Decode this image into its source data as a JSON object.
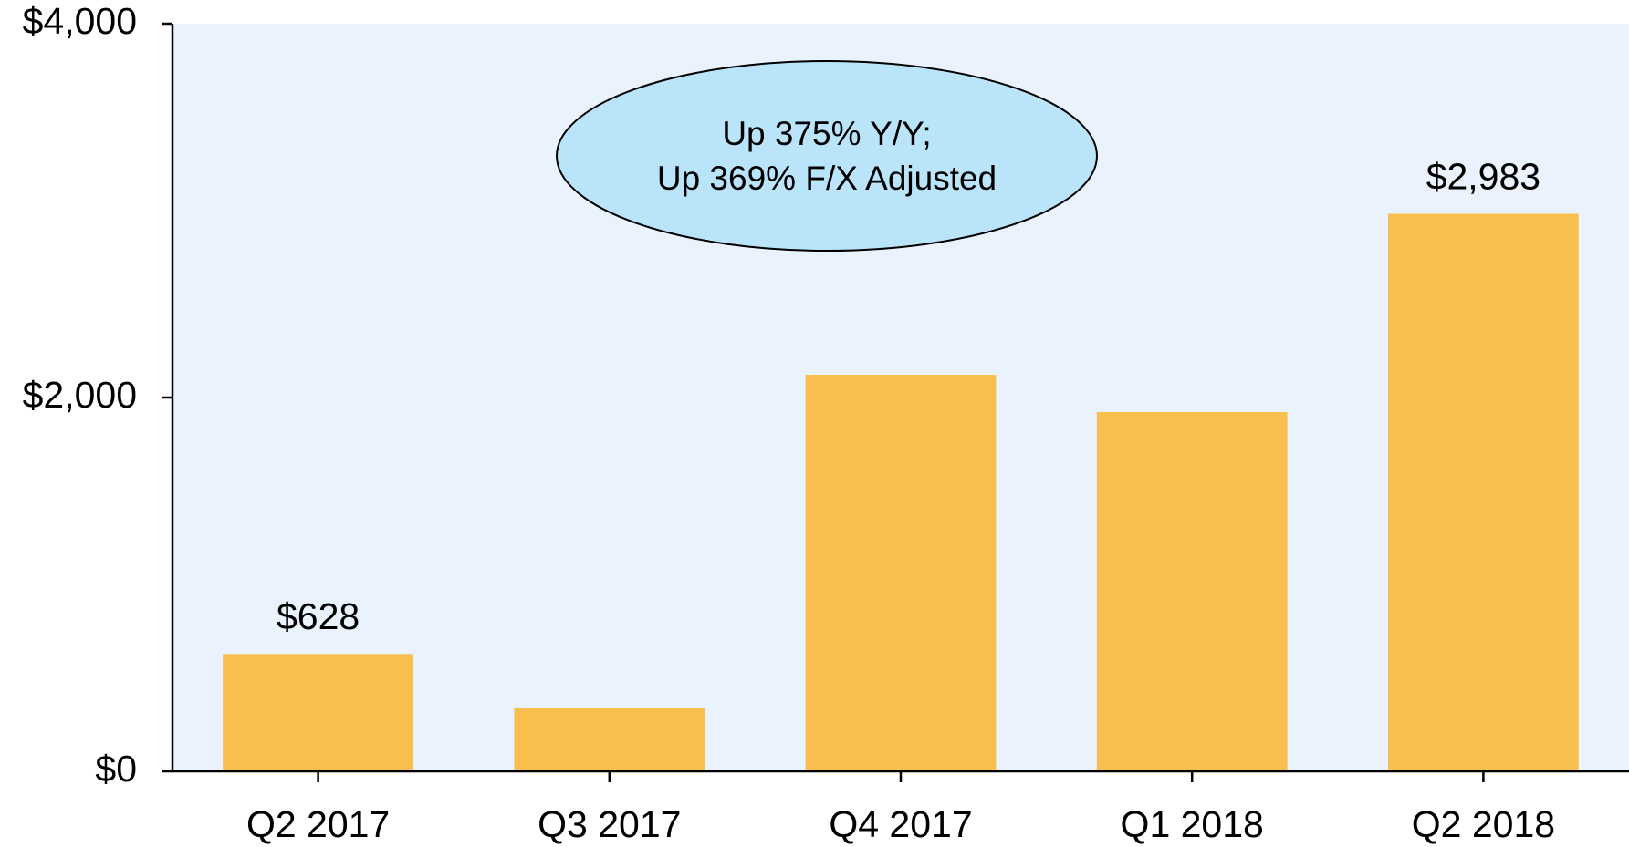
{
  "chart_data": {
    "type": "bar",
    "categories": [
      "Q2 2017",
      "Q3 2017",
      "Q4 2017",
      "Q1 2018",
      "Q2 2018"
    ],
    "values": [
      628,
      339,
      2122,
      1922,
      2983
    ],
    "value_labels": [
      "$628",
      null,
      null,
      null,
      "$2,983"
    ],
    "color": "#f8bf4f",
    "ylim": [
      0,
      4000
    ],
    "yticks": [
      {
        "value": 0,
        "label": "$0"
      },
      {
        "value": 2000,
        "label": "$2,000"
      },
      {
        "value": 4000,
        "label": "$4,000"
      }
    ],
    "annotation": [
      "Up 375% Y/Y;",
      "Up 369% F/X Adjusted"
    ],
    "background": "#eaf2fd"
  }
}
